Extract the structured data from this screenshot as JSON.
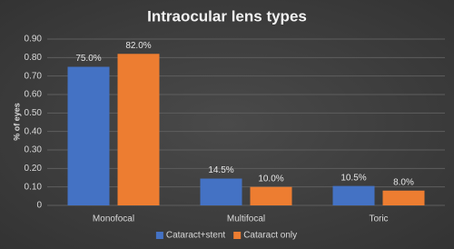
{
  "chart_data": {
    "type": "bar",
    "title": "Intraocular lens types",
    "y_label": "% of eyes",
    "categories": [
      "Monofocal",
      "Multifocal",
      "Toric"
    ],
    "series": [
      {
        "name": "Cataract+stent",
        "color": "#4472c4",
        "values": [
          0.75,
          0.145,
          0.105
        ],
        "value_labels": [
          "75.0%",
          "14.5%",
          "10.5%"
        ]
      },
      {
        "name": "Cataract only",
        "color": "#ed7d31",
        "values": [
          0.82,
          0.1,
          0.08
        ],
        "value_labels": [
          "82.0%",
          "10.0%",
          "8.0%"
        ]
      }
    ],
    "ylim": [
      0,
      0.9
    ],
    "yticks": [
      0,
      {
        "value": 0.1,
        "label": "0.10"
      },
      {
        "value": 0.2,
        "label": "0.20"
      },
      {
        "value": 0.3,
        "label": "0.30"
      },
      {
        "value": 0.4,
        "label": "0.40"
      },
      {
        "value": 0.5,
        "label": "0.50"
      },
      {
        "value": 0.6,
        "label": "0.60"
      },
      {
        "value": 0.7,
        "label": "0.70"
      },
      {
        "value": 0.8,
        "label": "0.80"
      },
      {
        "value": 0.9,
        "label": "0.90"
      }
    ],
    "grid": true,
    "legend": "bottom"
  }
}
